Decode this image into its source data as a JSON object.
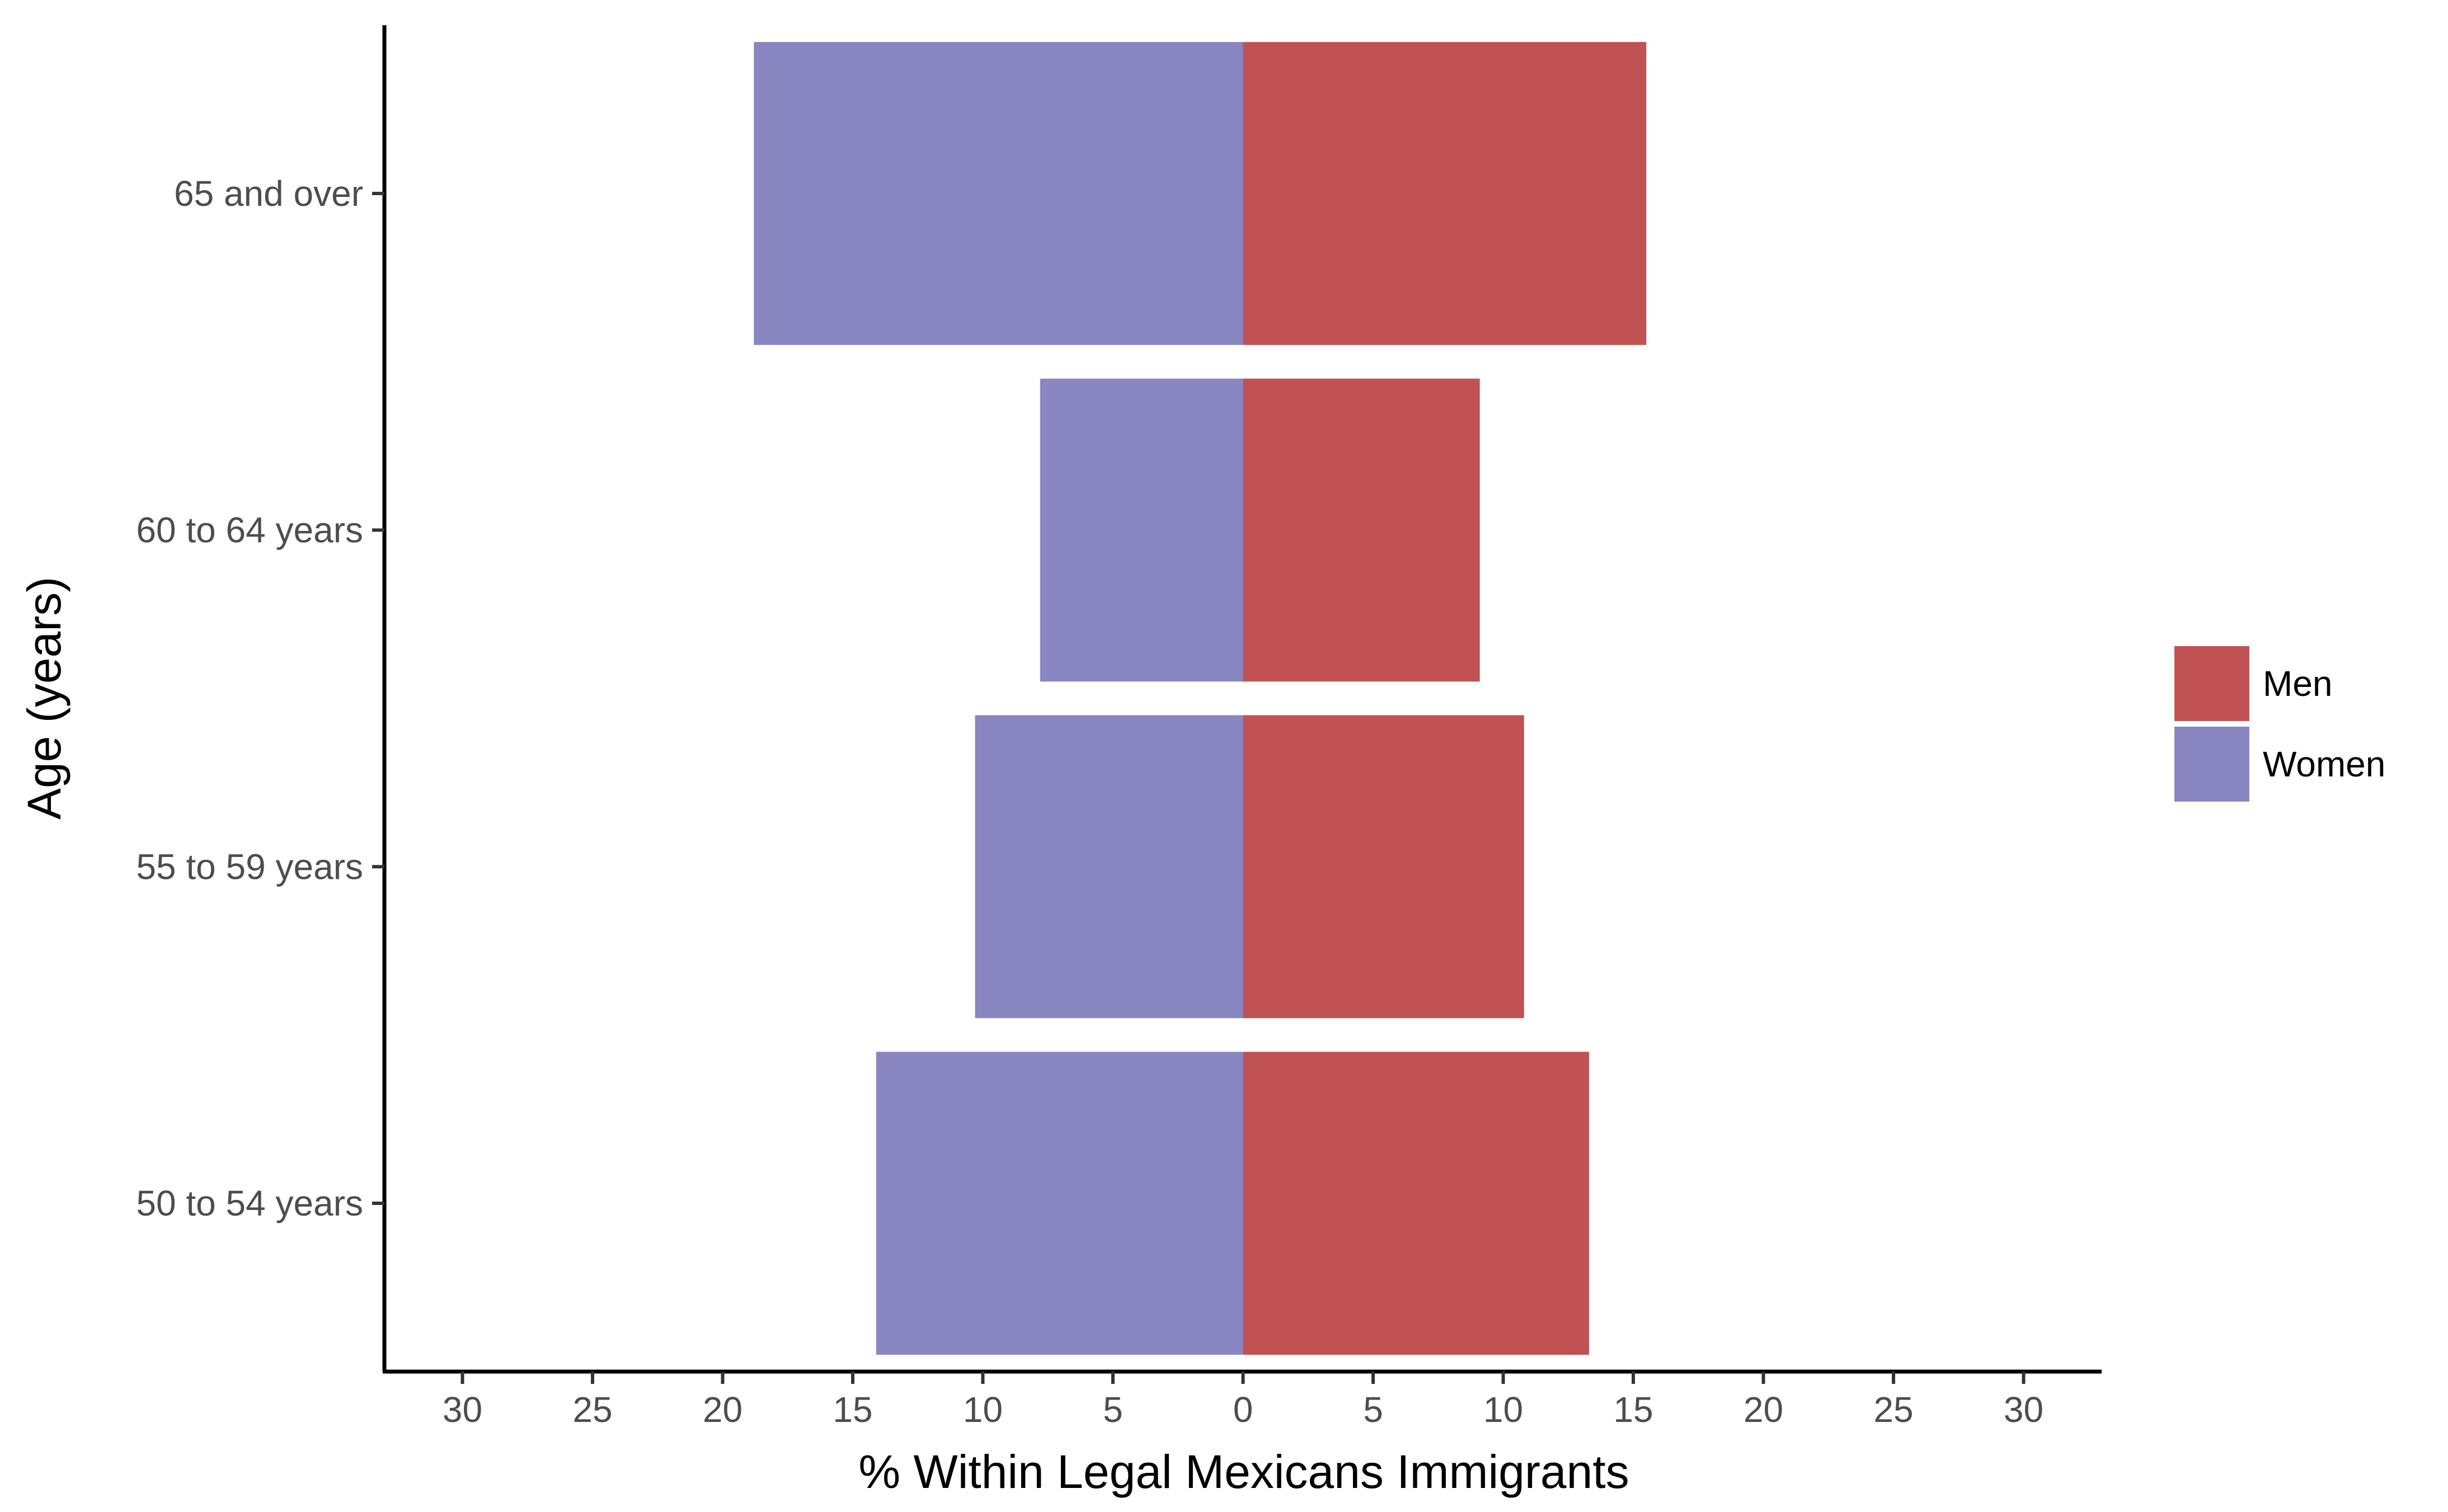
{
  "chart_data": {
    "type": "bar",
    "orientation": "horizontal",
    "layout": "diverging",
    "categories": [
      "65 and over",
      "60 to 64 years",
      "55 to 59 years",
      "50 to 54 years"
    ],
    "series": [
      {
        "name": "Men",
        "color": "#c05254",
        "direction": "right",
        "values": [
          15.5,
          9.1,
          10.8,
          13.3
        ]
      },
      {
        "name": "Women",
        "color": "#8986c1",
        "direction": "left",
        "values": [
          18.8,
          7.8,
          10.3,
          14.1
        ]
      }
    ],
    "xlabel": "% Within Legal Mexicans Immigrants",
    "ylabel": "Age (years)",
    "xlim": [
      -33,
      33
    ],
    "xticks": [
      -30,
      -25,
      -20,
      -15,
      -10,
      -5,
      0,
      5,
      10,
      15,
      20,
      25,
      30
    ],
    "xtick_labels": [
      "30",
      "25",
      "20",
      "15",
      "10",
      "5",
      "0",
      "5",
      "10",
      "15",
      "20",
      "25",
      "30"
    ],
    "grid": false,
    "legend": {
      "position": "right",
      "entries": [
        "Men",
        "Women"
      ]
    }
  }
}
